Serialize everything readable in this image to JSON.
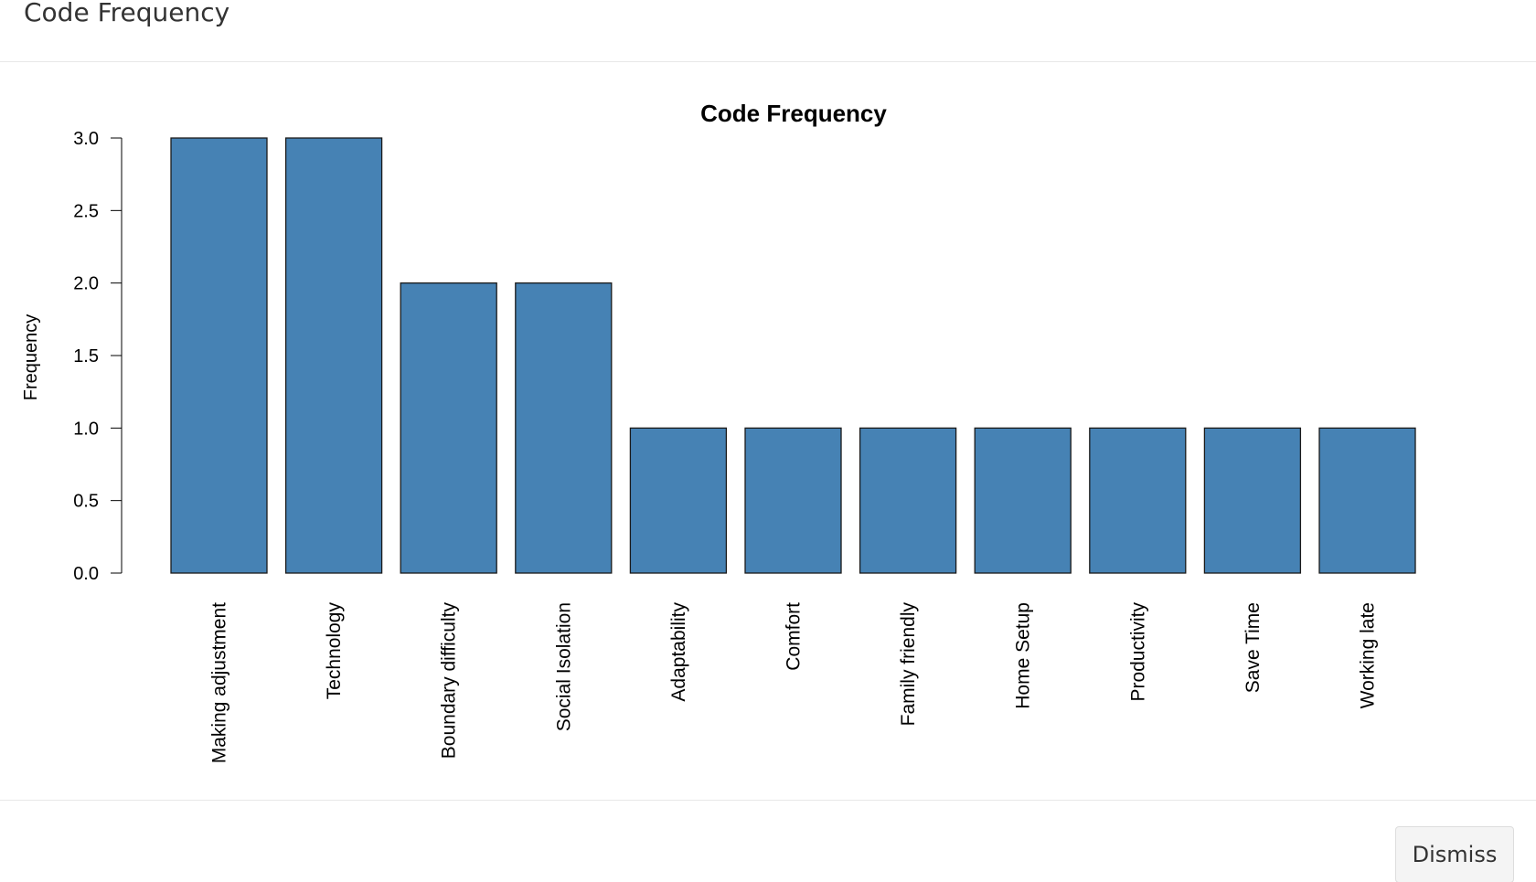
{
  "modal": {
    "title": "Code Frequency"
  },
  "footer": {
    "dismiss_label": "Dismiss"
  },
  "chart_data": {
    "type": "bar",
    "title": "Code Frequency",
    "xlabel": "",
    "ylabel": "Frequency",
    "categories": [
      "Making adjustment",
      "Technology",
      "Boundary difficulty",
      "Social Isolation",
      "Adaptability",
      "Comfort",
      "Family friendly",
      "Home Setup",
      "Productivity",
      "Save Time",
      "Working late"
    ],
    "values": [
      3,
      3,
      2,
      2,
      1,
      1,
      1,
      1,
      1,
      1,
      1
    ],
    "ylim": [
      0,
      3
    ],
    "yticks": [
      "0.0",
      "0.5",
      "1.0",
      "1.5",
      "2.0",
      "2.5",
      "3.0"
    ],
    "bar_color": "#4682b4",
    "grid": false
  }
}
